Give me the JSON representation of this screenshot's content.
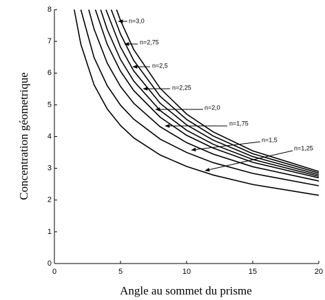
{
  "chart_data": {
    "type": "line",
    "xlabel": "Angle au sommet du prisme",
    "ylabel": "Concentration géometrique",
    "xlim": [
      0,
      20
    ],
    "xticks": [
      0,
      5,
      10,
      15,
      20
    ],
    "ylim": [
      0,
      8
    ],
    "yticks": [
      0,
      1,
      2,
      3,
      4,
      5,
      6,
      7,
      8
    ],
    "color": "#000000",
    "series": [
      {
        "x": [
          1.5,
          2,
          3,
          4,
          5,
          6,
          8,
          10,
          12,
          15,
          20
        ],
        "values": [
          8,
          6.91,
          5.63,
          4.87,
          4.35,
          3.96,
          3.42,
          3.06,
          2.79,
          2.49,
          2.15
        ]
      },
      {
        "x": [
          2,
          3,
          4,
          5,
          6,
          8,
          10,
          12,
          15,
          20
        ],
        "values": [
          8,
          6.49,
          5.6,
          4.99,
          4.55,
          3.92,
          3.5,
          3.18,
          2.84,
          2.45
        ]
      },
      {
        "x": [
          2.6,
          3,
          4,
          5,
          6,
          8,
          10,
          12,
          15,
          20
        ],
        "values": [
          8,
          7.39,
          6.31,
          5.58,
          5.05,
          4.31,
          3.81,
          3.45,
          3.05,
          2.6
        ]
      },
      {
        "x": [
          3.1,
          4,
          5,
          6,
          8,
          10,
          12,
          15,
          20
        ],
        "values": [
          8,
          6.9,
          6.06,
          5.45,
          4.61,
          4.04,
          3.64,
          3.19,
          2.7
        ]
      },
      {
        "x": [
          3.5,
          4,
          5,
          6,
          8,
          10,
          12,
          15,
          20
        ],
        "values": [
          8,
          7.37,
          6.43,
          5.75,
          4.82,
          4.2,
          3.76,
          3.28,
          2.75
        ]
      },
      {
        "x": [
          3.9,
          5,
          6,
          8,
          10,
          12,
          15,
          20
        ],
        "values": [
          8,
          6.82,
          6.07,
          5.05,
          4.37,
          3.89,
          3.37,
          2.8
        ]
      },
      {
        "x": [
          4.3,
          5,
          6,
          8,
          10,
          12,
          15,
          20
        ],
        "values": [
          8,
          7.23,
          6.4,
          5.27,
          4.54,
          4.02,
          3.46,
          2.85
        ]
      },
      {
        "x": [
          4.7,
          5,
          6,
          8,
          10,
          12,
          15,
          20
        ],
        "values": [
          8,
          7.66,
          6.74,
          5.52,
          4.71,
          4.15,
          3.55,
          2.9
        ]
      }
    ],
    "annotations": [
      "n=3,0",
      "n=2,75",
      "n=2,5",
      "n=2,25",
      "n=2,0",
      "n=1,75",
      "n=1,5",
      "n=1,25"
    ]
  }
}
